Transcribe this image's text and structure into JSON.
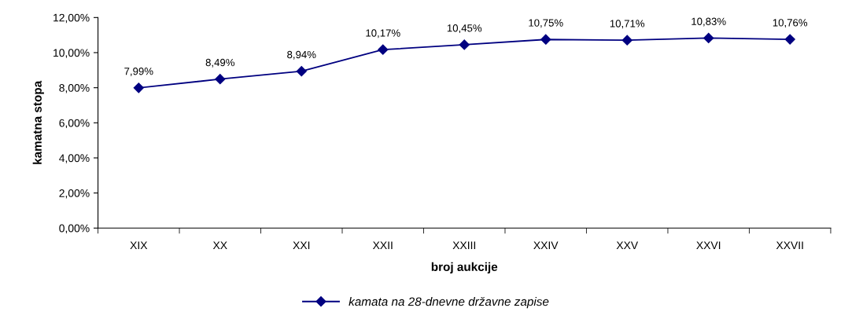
{
  "chart_data": {
    "type": "line",
    "xlabel": "broj aukcije",
    "ylabel": "kamatna stopa",
    "categories": [
      "XIX",
      "XX",
      "XXI",
      "XXII",
      "XXIII",
      "XXIV",
      "XXV",
      "XXVI",
      "XXVII"
    ],
    "series": [
      {
        "name": "kamata na 28-dnevne državne zapise",
        "color": "#000080",
        "values": [
          7.99,
          8.49,
          8.94,
          10.17,
          10.45,
          10.75,
          10.71,
          10.83,
          10.76
        ],
        "value_labels": [
          "7,99%",
          "8,49%",
          "8,94%",
          "10,17%",
          "10,45%",
          "10,75%",
          "10,71%",
          "10,83%",
          "10,76%"
        ]
      }
    ],
    "ylim": [
      0,
      12
    ],
    "yticks": [
      {
        "value": 0,
        "label": "0,00%"
      },
      {
        "value": 2,
        "label": "2,00%"
      },
      {
        "value": 4,
        "label": "4,00%"
      },
      {
        "value": 6,
        "label": "6,00%"
      },
      {
        "value": 8,
        "label": "8,00%"
      },
      {
        "value": 10,
        "label": "10,00%"
      },
      {
        "value": 12,
        "label": "12,00%"
      }
    ],
    "marker": "diamond",
    "line_style": "solid",
    "grid": false,
    "legend": "bottom"
  }
}
